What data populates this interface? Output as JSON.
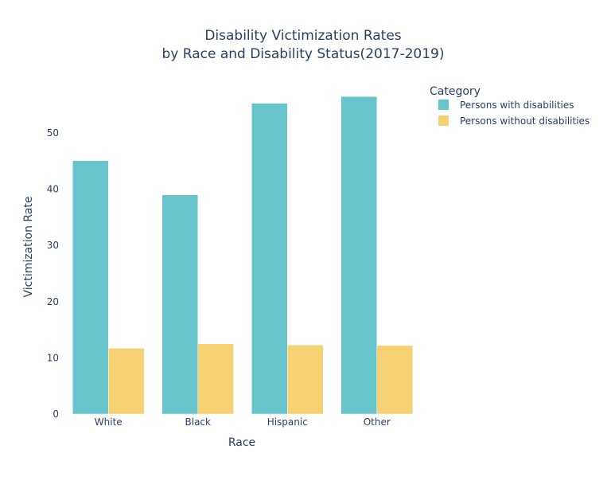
{
  "chart_data": {
    "type": "bar",
    "title_line1": "Disability Victimization Rates",
    "title_line2": "by Race and Disability Status(2017-2019)",
    "xlabel": "Race",
    "ylabel": "Victimization Rate",
    "categories": [
      "White",
      "Black",
      "Hispanic",
      "Other"
    ],
    "series": [
      {
        "name": "Persons with disabilities",
        "color": "#67c4cc",
        "values": [
          45.1,
          39.0,
          55.3,
          56.5
        ]
      },
      {
        "name": "Persons without disabilities",
        "color": "#f6d173",
        "values": [
          11.7,
          12.5,
          12.3,
          12.2
        ]
      }
    ],
    "ylim": [
      0,
      59.5
    ],
    "yticks": [
      0,
      10,
      20,
      30,
      40,
      50
    ],
    "grid": false,
    "legend": {
      "title": "Category",
      "placement": "top-right"
    }
  }
}
